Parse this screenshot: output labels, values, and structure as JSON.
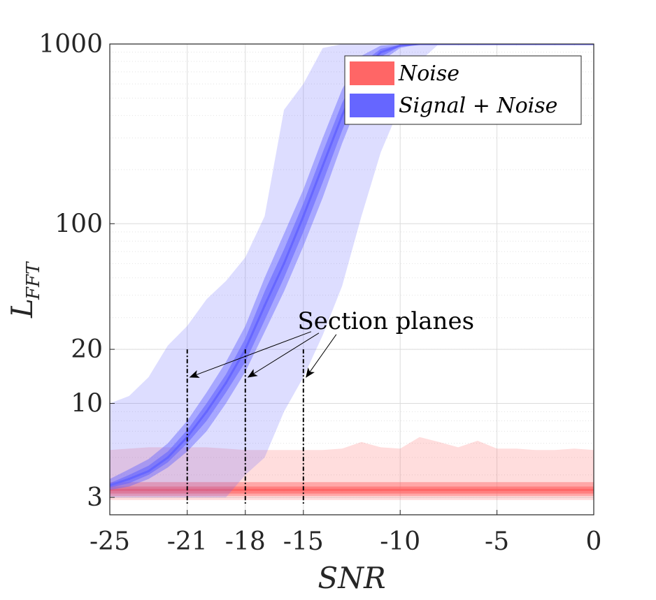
{
  "chart_data": {
    "type": "area",
    "xlabel": "SNR",
    "ylabel_main": "L",
    "ylabel_sub": "FFT",
    "xlim": [
      -25,
      0
    ],
    "ylim": [
      2.4,
      1000
    ],
    "yscale": "log",
    "grid": true,
    "legend_placement": "top-right",
    "xticks": [
      -25,
      -21,
      -18,
      -15,
      -10,
      -5,
      0
    ],
    "xtick_labels": [
      "-25",
      "-21",
      "-18",
      "-15",
      "-10",
      "-5",
      "0"
    ],
    "yticks": [
      3,
      10,
      20,
      100,
      1000
    ],
    "ytick_labels": [
      "3",
      "10",
      "20",
      "100",
      "1000"
    ],
    "annotation": {
      "text": "Section planes",
      "x_positions": [
        -21,
        -18,
        -15
      ],
      "line_top": 20,
      "anchor_y": 14
    },
    "series": [
      {
        "name": "Noise",
        "color": "#ff6666",
        "x": [
          -25,
          -24,
          -23,
          -22,
          -21,
          -20,
          -19,
          -18,
          -17,
          -16,
          -15,
          -14,
          -13,
          -12,
          -11,
          -10,
          -9,
          -8,
          -7,
          -6,
          -5,
          -4,
          -3,
          -2,
          -1,
          0
        ],
        "median": [
          3.3,
          3.3,
          3.3,
          3.3,
          3.3,
          3.3,
          3.3,
          3.3,
          3.3,
          3.3,
          3.3,
          3.3,
          3.3,
          3.3,
          3.3,
          3.3,
          3.3,
          3.3,
          3.3,
          3.3,
          3.3,
          3.3,
          3.3,
          3.3,
          3.3,
          3.3
        ],
        "band_inner_low": [
          3.15,
          3.15,
          3.15,
          3.15,
          3.15,
          3.15,
          3.15,
          3.15,
          3.15,
          3.15,
          3.15,
          3.15,
          3.15,
          3.15,
          3.15,
          3.15,
          3.15,
          3.15,
          3.15,
          3.15,
          3.15,
          3.15,
          3.15,
          3.15,
          3.15,
          3.15
        ],
        "band_inner_high": [
          3.45,
          3.45,
          3.45,
          3.45,
          3.45,
          3.45,
          3.45,
          3.45,
          3.45,
          3.45,
          3.45,
          3.45,
          3.45,
          3.45,
          3.45,
          3.45,
          3.45,
          3.45,
          3.45,
          3.45,
          3.45,
          3.45,
          3.45,
          3.45,
          3.45,
          3.45
        ],
        "band_mid_low": [
          3.05,
          3.05,
          3.05,
          3.05,
          3.05,
          3.05,
          3.05,
          3.05,
          3.05,
          3.05,
          3.05,
          3.05,
          3.05,
          3.05,
          3.05,
          3.05,
          3.05,
          3.05,
          3.05,
          3.05,
          3.05,
          3.05,
          3.05,
          3.05,
          3.05,
          3.05
        ],
        "band_mid_high": [
          3.65,
          3.65,
          3.65,
          3.65,
          3.65,
          3.65,
          3.65,
          3.65,
          3.65,
          3.65,
          3.65,
          3.65,
          3.65,
          3.65,
          3.65,
          3.65,
          3.65,
          3.65,
          3.65,
          3.65,
          3.65,
          3.65,
          3.65,
          3.65,
          3.65,
          3.65
        ],
        "band_outer_low": [
          2.9,
          2.9,
          2.9,
          2.9,
          2.9,
          2.9,
          2.9,
          2.9,
          2.9,
          2.9,
          2.9,
          2.9,
          2.9,
          2.9,
          2.9,
          2.9,
          2.9,
          2.9,
          2.9,
          2.9,
          2.9,
          2.9,
          2.9,
          2.9,
          2.9,
          2.9
        ],
        "band_outer_high": [
          5.5,
          5.6,
          5.7,
          5.7,
          5.7,
          5.7,
          5.6,
          5.5,
          5.5,
          5.5,
          5.5,
          5.5,
          5.6,
          6.1,
          5.7,
          5.6,
          6.5,
          6.1,
          5.7,
          6.2,
          5.6,
          5.6,
          5.5,
          5.5,
          5.6,
          5.5
        ]
      },
      {
        "name": "Signal + Noise",
        "color": "#6666ff",
        "x": [
          -25,
          -24,
          -23,
          -22,
          -21,
          -20,
          -19,
          -18,
          -17,
          -16,
          -15,
          -14,
          -13,
          -12,
          -11,
          -10,
          -9,
          -8,
          -7,
          -6,
          -5,
          -4,
          -3,
          -2,
          -1,
          0
        ],
        "median": [
          3.5,
          3.8,
          4.2,
          5.0,
          6.5,
          9.0,
          13,
          20,
          35,
          60,
          110,
          210,
          400,
          700,
          900,
          980,
          1000,
          1000,
          1000,
          1000,
          1000,
          1000,
          1000,
          1000,
          1000,
          1000
        ],
        "band_inner_low": [
          3.4,
          3.6,
          4.0,
          4.7,
          6.0,
          8.0,
          11.5,
          17,
          29,
          50,
          90,
          170,
          330,
          600,
          850,
          970,
          1000,
          1000,
          1000,
          1000,
          1000,
          1000,
          1000,
          1000,
          1000,
          1000
        ],
        "band_inner_high": [
          3.6,
          4.0,
          4.5,
          5.4,
          7.1,
          10,
          14.5,
          23,
          42,
          72,
          130,
          250,
          470,
          780,
          940,
          990,
          1000,
          1000,
          1000,
          1000,
          1000,
          1000,
          1000,
          1000,
          1000,
          1000
        ],
        "band_mid_low": [
          3.3,
          3.45,
          3.8,
          4.4,
          5.4,
          7.0,
          10,
          15,
          25,
          42,
          75,
          140,
          280,
          520,
          800,
          950,
          1000,
          1000,
          1000,
          1000,
          1000,
          1000,
          1000,
          1000,
          1000,
          1000
        ],
        "band_mid_high": [
          3.8,
          4.3,
          4.9,
          6.0,
          8.0,
          11.5,
          17,
          27,
          50,
          88,
          155,
          300,
          560,
          860,
          980,
          1000,
          1000,
          1000,
          1000,
          1000,
          1000,
          1000,
          1000,
          1000,
          1000,
          1000
        ],
        "band_outer_low": [
          3.0,
          3.0,
          3.0,
          3.0,
          3.0,
          3.0,
          3.0,
          4.0,
          5.0,
          9.0,
          14,
          24,
          45,
          110,
          250,
          450,
          800,
          1000,
          1000,
          1000,
          1000,
          1000,
          1000,
          1000,
          1000,
          1000
        ],
        "band_outer_high": [
          10,
          11,
          14,
          21,
          27,
          38,
          48,
          65,
          110,
          430,
          600,
          950,
          1000,
          1000,
          1000,
          1000,
          1000,
          1000,
          1000,
          1000,
          1000,
          1000,
          1000,
          1000,
          1000,
          1000
        ]
      }
    ]
  },
  "legend": {
    "items": [
      {
        "label": "Noise",
        "color": "#ff6666"
      },
      {
        "label": "Signal + Noise",
        "color": "#6666ff"
      }
    ]
  }
}
